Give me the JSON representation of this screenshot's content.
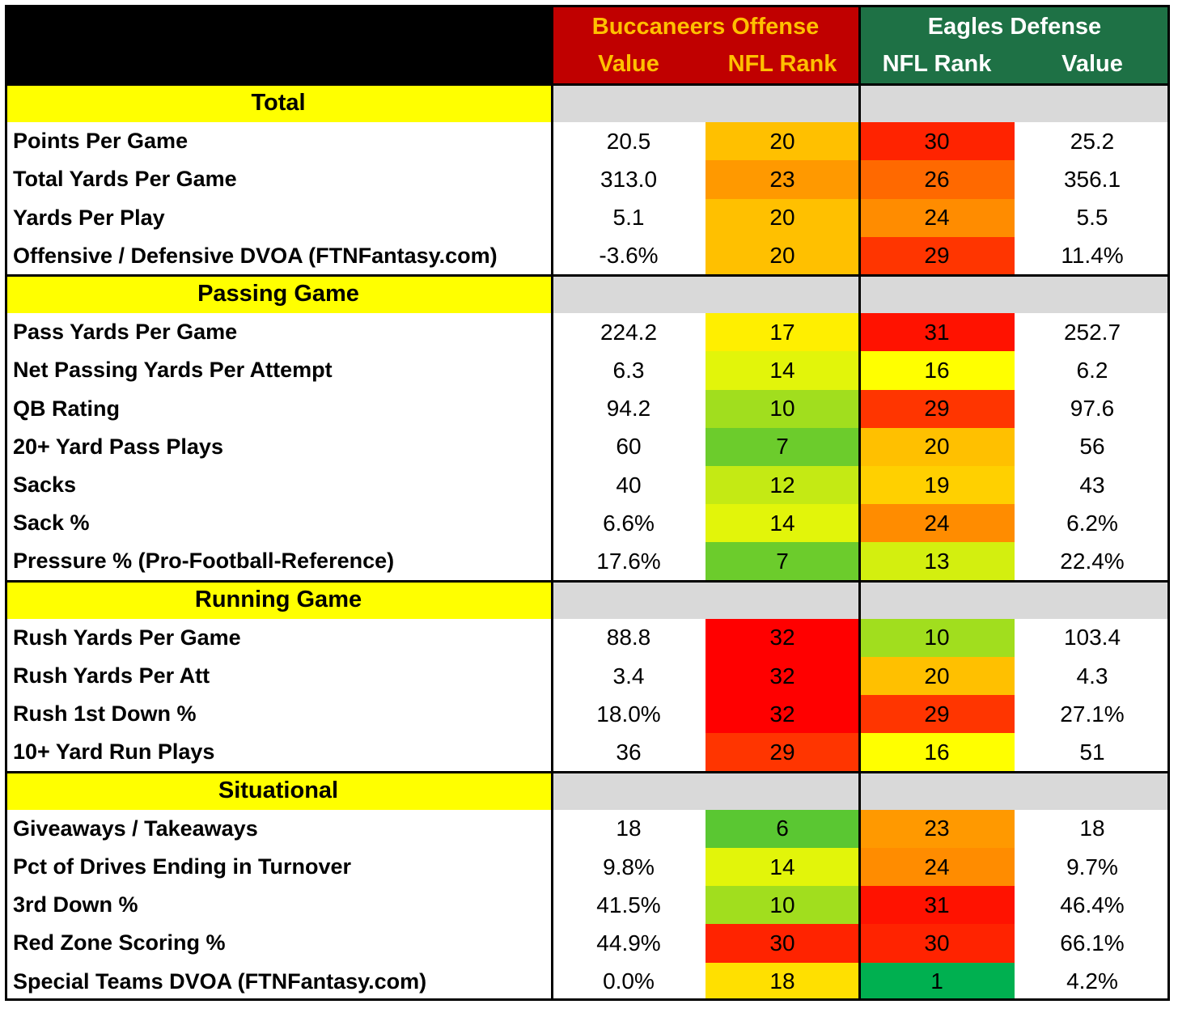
{
  "header": {
    "offense_team": "Buccaneers Offense",
    "defense_team": "Eagles Defense",
    "offense_cols": [
      "Value",
      "NFL Rank"
    ],
    "defense_cols": [
      "NFL Rank",
      "Value"
    ]
  },
  "colors": {
    "offense_header_bg": "#c00000",
    "offense_header_text": "#ffc000",
    "defense_header_bg": "#1e7145",
    "defense_header_text": "#ffffff",
    "section_title_bg": "#ffff00",
    "section_fill_bg": "#d9d9d9",
    "rank_scale": "1 = green, 16 = yellow, 32 = red"
  },
  "chart_data": {
    "type": "table",
    "columns": [
      "",
      "Value",
      "NFL Rank",
      "NFL Rank",
      "Value"
    ],
    "sections": [
      {
        "title": "Total",
        "rows": [
          {
            "label": "Points Per Game",
            "off_value": "20.5",
            "off_rank": 20,
            "def_rank": 30,
            "def_value": "25.2"
          },
          {
            "label": "Total Yards Per Game",
            "off_value": "313.0",
            "off_rank": 23,
            "def_rank": 26,
            "def_value": "356.1"
          },
          {
            "label": "Yards Per Play",
            "off_value": "5.1",
            "off_rank": 20,
            "def_rank": 24,
            "def_value": "5.5"
          },
          {
            "label": "Offensive / Defensive DVOA (FTNFantasy.com)",
            "off_value": "-3.6%",
            "off_rank": 20,
            "def_rank": 29,
            "def_value": "11.4%"
          }
        ]
      },
      {
        "title": "Passing Game",
        "rows": [
          {
            "label": "Pass Yards Per Game",
            "off_value": "224.2",
            "off_rank": 17,
            "def_rank": 31,
            "def_value": "252.7"
          },
          {
            "label": "Net Passing Yards Per Attempt",
            "off_value": "6.3",
            "off_rank": 14,
            "def_rank": 16,
            "def_value": "6.2"
          },
          {
            "label": "QB Rating",
            "off_value": "94.2",
            "off_rank": 10,
            "def_rank": 29,
            "def_value": "97.6"
          },
          {
            "label": "20+ Yard Pass Plays",
            "off_value": "60",
            "off_rank": 7,
            "def_rank": 20,
            "def_value": "56"
          },
          {
            "label": "Sacks",
            "off_value": "40",
            "off_rank": 12,
            "def_rank": 19,
            "def_value": "43"
          },
          {
            "label": "Sack %",
            "off_value": "6.6%",
            "off_rank": 14,
            "def_rank": 24,
            "def_value": "6.2%"
          },
          {
            "label": "Pressure % (Pro-Football-Reference)",
            "off_value": "17.6%",
            "off_rank": 7,
            "def_rank": 13,
            "def_value": "22.4%"
          }
        ]
      },
      {
        "title": "Running Game",
        "rows": [
          {
            "label": "Rush Yards Per Game",
            "off_value": "88.8",
            "off_rank": 32,
            "def_rank": 10,
            "def_value": "103.4"
          },
          {
            "label": "Rush Yards Per Att",
            "off_value": "3.4",
            "off_rank": 32,
            "def_rank": 20,
            "def_value": "4.3"
          },
          {
            "label": "Rush 1st Down %",
            "off_value": "18.0%",
            "off_rank": 32,
            "def_rank": 29,
            "def_value": "27.1%"
          },
          {
            "label": "10+ Yard Run Plays",
            "off_value": "36",
            "off_rank": 29,
            "def_rank": 16,
            "def_value": "51"
          }
        ]
      },
      {
        "title": "Situational",
        "rows": [
          {
            "label": "Giveaways / Takeaways",
            "off_value": "18",
            "off_rank": 6,
            "def_rank": 23,
            "def_value": "18"
          },
          {
            "label": "Pct of Drives Ending in Turnover",
            "off_value": "9.8%",
            "off_rank": 14,
            "def_rank": 24,
            "def_value": "9.7%"
          },
          {
            "label": "3rd Down %",
            "off_value": "41.5%",
            "off_rank": 10,
            "def_rank": 31,
            "def_value": "46.4%"
          },
          {
            "label": "Red Zone Scoring %",
            "off_value": "44.9%",
            "off_rank": 30,
            "def_rank": 30,
            "def_value": "66.1%"
          },
          {
            "label": "Special Teams DVOA  (FTNFantasy.com)",
            "off_value": "0.0%",
            "off_rank": 18,
            "def_rank": 1,
            "def_value": "4.2%"
          }
        ]
      }
    ]
  }
}
